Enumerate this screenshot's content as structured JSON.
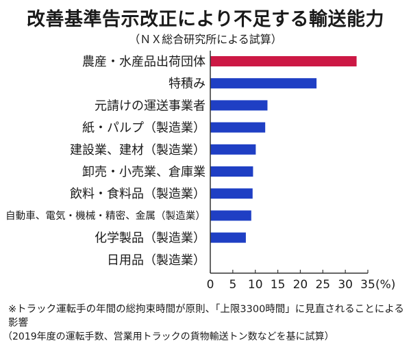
{
  "title": "改善基準告示改正により不足する輸送能力",
  "subtitle": "（ＮＸ総合研究所による試算）",
  "footnote_1": "※トラック運転手の年間の総拘束時間が原則、「上限3300時間」に見直されることによる影響",
  "footnote_2": "（2019年度の運転手数、営業用トラックの貨物輸送トン数などを基に試算）",
  "colors": {
    "highlight": "#cc1844",
    "bar": "#1f3fc4",
    "axis": "#333333"
  },
  "chart_data": {
    "type": "bar",
    "orientation": "horizontal",
    "categories": [
      "農産・水産品出荷団体",
      "特積み",
      "元請けの運送事業者",
      "紙・パルプ（製造業）",
      "建設業、建材（製造業）",
      "卸売・小売業、倉庫業",
      "飲料・食料品（製造業）",
      "自動車、電気・機械・精密、金属（製造業）",
      "化学製品（製造業）",
      "日用品（製造業）"
    ],
    "values": [
      32.5,
      23.6,
      12.7,
      12.2,
      10.1,
      9.5,
      9.4,
      9.1,
      7.9,
      0
    ],
    "highlight_index": 0,
    "xlim": [
      0,
      35
    ],
    "xticks": [
      0,
      5,
      10,
      15,
      20,
      25,
      30,
      35
    ],
    "unit": "(%)",
    "grid": false
  }
}
